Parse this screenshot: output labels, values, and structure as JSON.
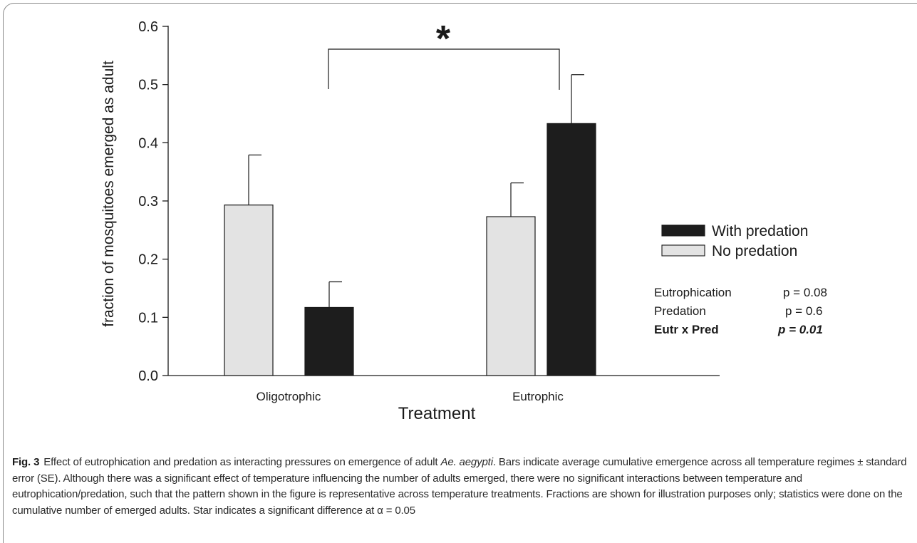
{
  "chart_data": {
    "type": "bar",
    "categories": [
      "Oligotrophic",
      "Eutrophic"
    ],
    "series": [
      {
        "name": "No predation",
        "values": [
          0.293,
          0.273
        ],
        "errors": [
          0.086,
          0.058
        ],
        "color": "#e3e3e3"
      },
      {
        "name": "With predation",
        "values": [
          0.117,
          0.433
        ],
        "errors": [
          0.044,
          0.084
        ],
        "color": "#1d1d1d"
      }
    ],
    "title": "",
    "xlabel": "Treatment",
    "ylabel": "fraction of mosquitoes emerged as adult",
    "ylim": [
      0.0,
      0.6
    ],
    "yticks": [
      "0.0",
      "0.1",
      "0.2",
      "0.3",
      "0.4",
      "0.5",
      "0.6"
    ],
    "ytick_values": [
      0.0,
      0.1,
      0.2,
      0.3,
      0.4,
      0.5,
      0.6
    ],
    "legend": [
      {
        "name": "With predation",
        "color": "#1d1d1d"
      },
      {
        "name": "No predation",
        "color": "#e3e3e3"
      }
    ],
    "legend_position": "right",
    "grid": false,
    "significance": {
      "symbol": "*",
      "between": [
        "Oligotrophic",
        "Eutrophic"
      ]
    },
    "stats": [
      {
        "label": "Eutrophication",
        "value": "p =  0.08",
        "bold": false
      },
      {
        "label": "Predation",
        "value": "p =  0.6",
        "bold": false
      },
      {
        "label": "Eutr x Pred",
        "value": "p =  0.01",
        "bold": true
      }
    ]
  },
  "caption": {
    "label": "Fig. 3",
    "text_before_species": "Effect of eutrophication and predation as interacting pressures on emergence of adult ",
    "species": "Ae. aegypti",
    "text_after_species": ". Bars indicate average cumulative emergence across all temperature regimes ± standard error (SE). Although there was a significant effect of temperature influencing the number of adults emerged, there were no significant interactions between temperature and eutrophication/predation, such that the pattern shown in the figure is representative across temperature treatments. Fractions are shown for illustration purposes only; statistics were done on the cumulative number of emerged adults. Star indicates a significant difference at α = 0.05"
  }
}
